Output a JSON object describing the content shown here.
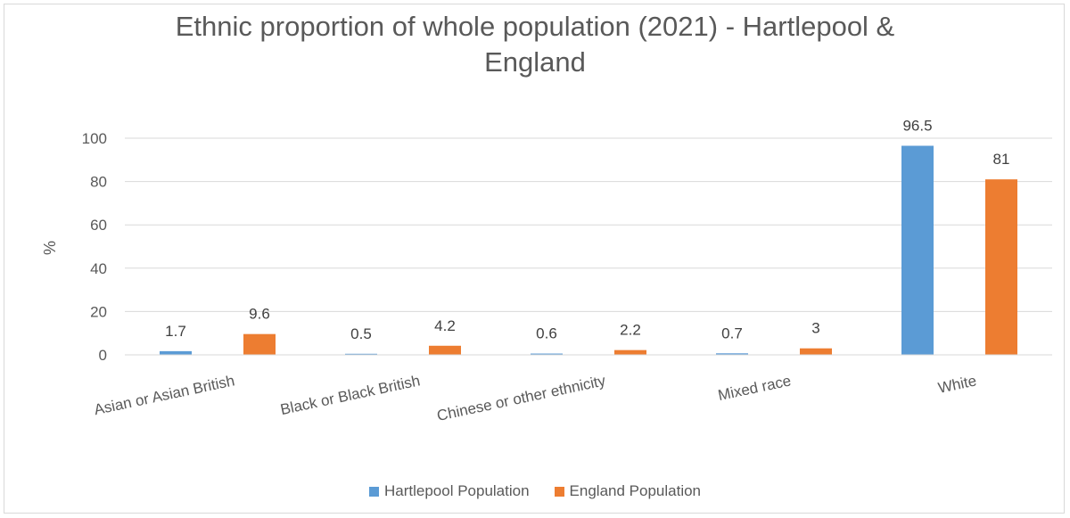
{
  "chart_data": {
    "type": "bar",
    "title": "Ethnic proportion of whole population (2021) - Hartlepool & England",
    "ylabel": "%",
    "xlabel": "",
    "ylim": [
      0,
      100
    ],
    "yticks": [
      0,
      20,
      40,
      60,
      80,
      100
    ],
    "grid": true,
    "legend_position": "bottom",
    "categories": [
      "Asian or Asian British",
      "Black or Black British",
      "Chinese or other ethnicity",
      "Mixed race",
      "White"
    ],
    "series": [
      {
        "name": "Hartlepool Population",
        "color": "#5b9bd5",
        "values": [
          1.7,
          0.5,
          0.6,
          0.7,
          96.5
        ]
      },
      {
        "name": "England Population",
        "color": "#ed7d31",
        "values": [
          9.6,
          4.2,
          2.2,
          3,
          81
        ]
      }
    ]
  }
}
